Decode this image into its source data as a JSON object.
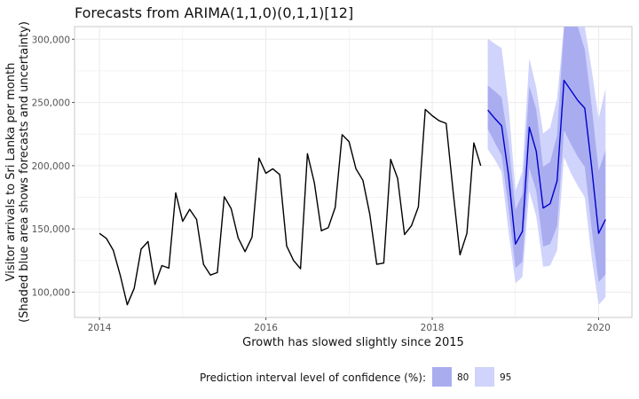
{
  "chart_data": {
    "type": "line",
    "title": "Forecasts from ARIMA(1,1,0)(0,1,1)[12]",
    "xlabel": "Growth has slowed slightly since 2015",
    "ylabel_line1": "Visitor arrivals to Sri Lanka per month",
    "ylabel_line2": "(Shaded blue area shows forecasts and uncertainty)",
    "xlim": [
      2013.7,
      2020.4
    ],
    "ylim": [
      80000,
      310000
    ],
    "x_ticks": [
      2014,
      2016,
      2018,
      2020
    ],
    "x_tick_labels": [
      "2014",
      "2016",
      "2018",
      "2020"
    ],
    "y_ticks": [
      100000,
      150000,
      200000,
      250000,
      300000
    ],
    "y_tick_labels": [
      "100,000",
      "150,000",
      "200,000",
      "250,000",
      "300,000"
    ],
    "grid": true,
    "legend_placement": "bottom",
    "colors": {
      "observed": "#000000",
      "forecast": "#0000cc",
      "pi80": "#a9adef",
      "pi95": "#d0d3fb",
      "grid": "#ebebeb",
      "panel_border": "#c8c8c8"
    },
    "series": [
      {
        "name": "observed",
        "start_x": 2014.0,
        "step": 0.08333,
        "values": [
          146500,
          142500,
          133000,
          113000,
          90000,
          103000,
          134000,
          140000,
          106000,
          121000,
          119000,
          178500,
          156000,
          165500,
          157500,
          122000,
          113500,
          115500,
          175500,
          166000,
          143000,
          132000,
          143500,
          206000,
          194000,
          197500,
          193000,
          136500,
          125000,
          118500,
          209500,
          186500,
          148500,
          151000,
          167000,
          224500,
          219000,
          197500,
          188500,
          161500,
          122000,
          123000,
          205000,
          190000,
          145500,
          152500,
          167500,
          244500,
          239500,
          235500,
          233500,
          180000,
          129500,
          146500,
          218000,
          200000
        ]
      },
      {
        "name": "forecast",
        "start_x": 2018.667,
        "step": 0.08333,
        "mean": [
          244000,
          237500,
          231500,
          192500,
          138000,
          148000,
          230500,
          211500,
          166500,
          170000,
          188000,
          267500,
          259500,
          251500,
          245500,
          198500,
          146500,
          157500
        ],
        "lo80": [
          229000,
          218500,
          208000,
          166500,
          119000,
          124000,
          198000,
          180000,
          136000,
          138000,
          152000,
          228000,
          217000,
          207000,
          199000,
          150000,
          108000,
          114000
        ],
        "hi80": [
          263500,
          259000,
          254000,
          218500,
          165000,
          177500,
          263000,
          244500,
          199000,
          203000,
          224000,
          310000,
          310000,
          310000,
          292000,
          247000,
          196000,
          212000
        ],
        "lo95": [
          213000,
          205000,
          195000,
          148000,
          107000,
          112000,
          180000,
          160000,
          120000,
          121000,
          133000,
          207000,
          194000,
          184000,
          175000,
          127000,
          90000,
          96000
        ],
        "hi95": [
          300500,
          296500,
          293000,
          247500,
          180000,
          195500,
          285000,
          262000,
          225500,
          230000,
          253000,
          310000,
          310000,
          310000,
          310000,
          276000,
          237000,
          261000
        ]
      }
    ],
    "legend": {
      "title": "Prediction interval level of confidence (%):",
      "items": [
        "80",
        "95"
      ]
    }
  }
}
